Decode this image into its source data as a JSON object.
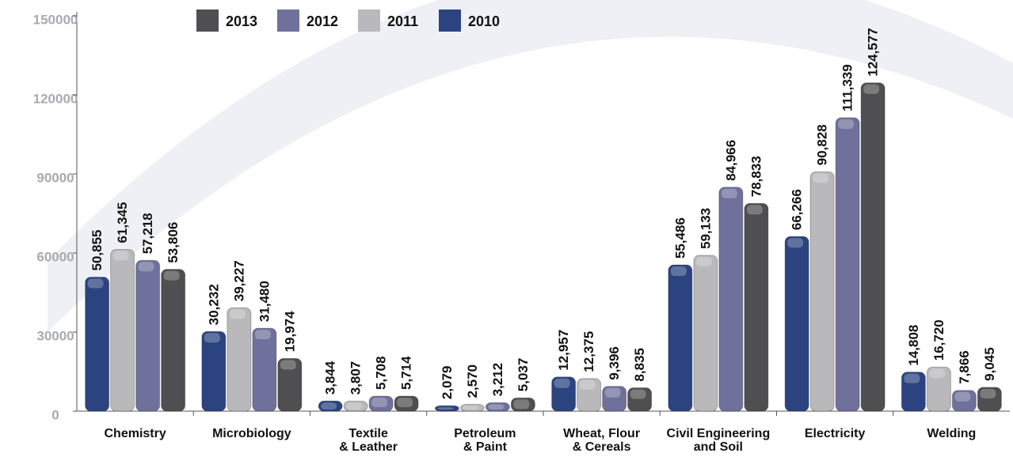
{
  "chart_data": {
    "type": "bar",
    "categories": [
      [
        "Chemistry"
      ],
      [
        "Microbiology"
      ],
      [
        "Textile",
        "& Leather"
      ],
      [
        "Petroleum",
        "& Paint"
      ],
      [
        "Wheat, Flour",
        "& Cereals"
      ],
      [
        "Civil Engineering",
        "and Soil"
      ],
      [
        "Electricity"
      ],
      [
        "Welding"
      ]
    ],
    "series": [
      {
        "name": "2010",
        "color": "#2b4480",
        "values": [
          50855,
          30232,
          3844,
          2079,
          12957,
          55486,
          66266,
          14808
        ],
        "value_labels": [
          "50,855",
          "30,232",
          "3,844",
          "2,079",
          "12,957",
          "55,486",
          "66,266",
          "14,808"
        ]
      },
      {
        "name": "2011",
        "color": "#b9b9bb",
        "values": [
          61345,
          39227,
          3807,
          2570,
          12375,
          59133,
          90828,
          16720
        ],
        "value_labels": [
          "61,345",
          "39,227",
          "3,807",
          "2,570",
          "12,375",
          "59,133",
          "90,828",
          "16,720"
        ]
      },
      {
        "name": "2012",
        "color": "#70709c",
        "values": [
          57218,
          31480,
          5708,
          3212,
          9396,
          84966,
          111339,
          7866
        ],
        "value_labels": [
          "57,218",
          "31,480",
          "5,708",
          "3,212",
          "9,396",
          "84,966",
          "111,339",
          "7,866"
        ]
      },
      {
        "name": "2013",
        "color": "#4f4f51",
        "values": [
          53806,
          19974,
          5714,
          5037,
          8835,
          78833,
          124577,
          9045
        ],
        "value_labels": [
          "53,806",
          "19,974",
          "5,714",
          "5,037",
          "8,835",
          "78,833",
          "124,577",
          "9,045"
        ]
      }
    ],
    "ylim": [
      0,
      150000
    ],
    "yticks": [
      0,
      30000,
      60000,
      90000,
      120000,
      150000
    ],
    "legend": "top"
  }
}
